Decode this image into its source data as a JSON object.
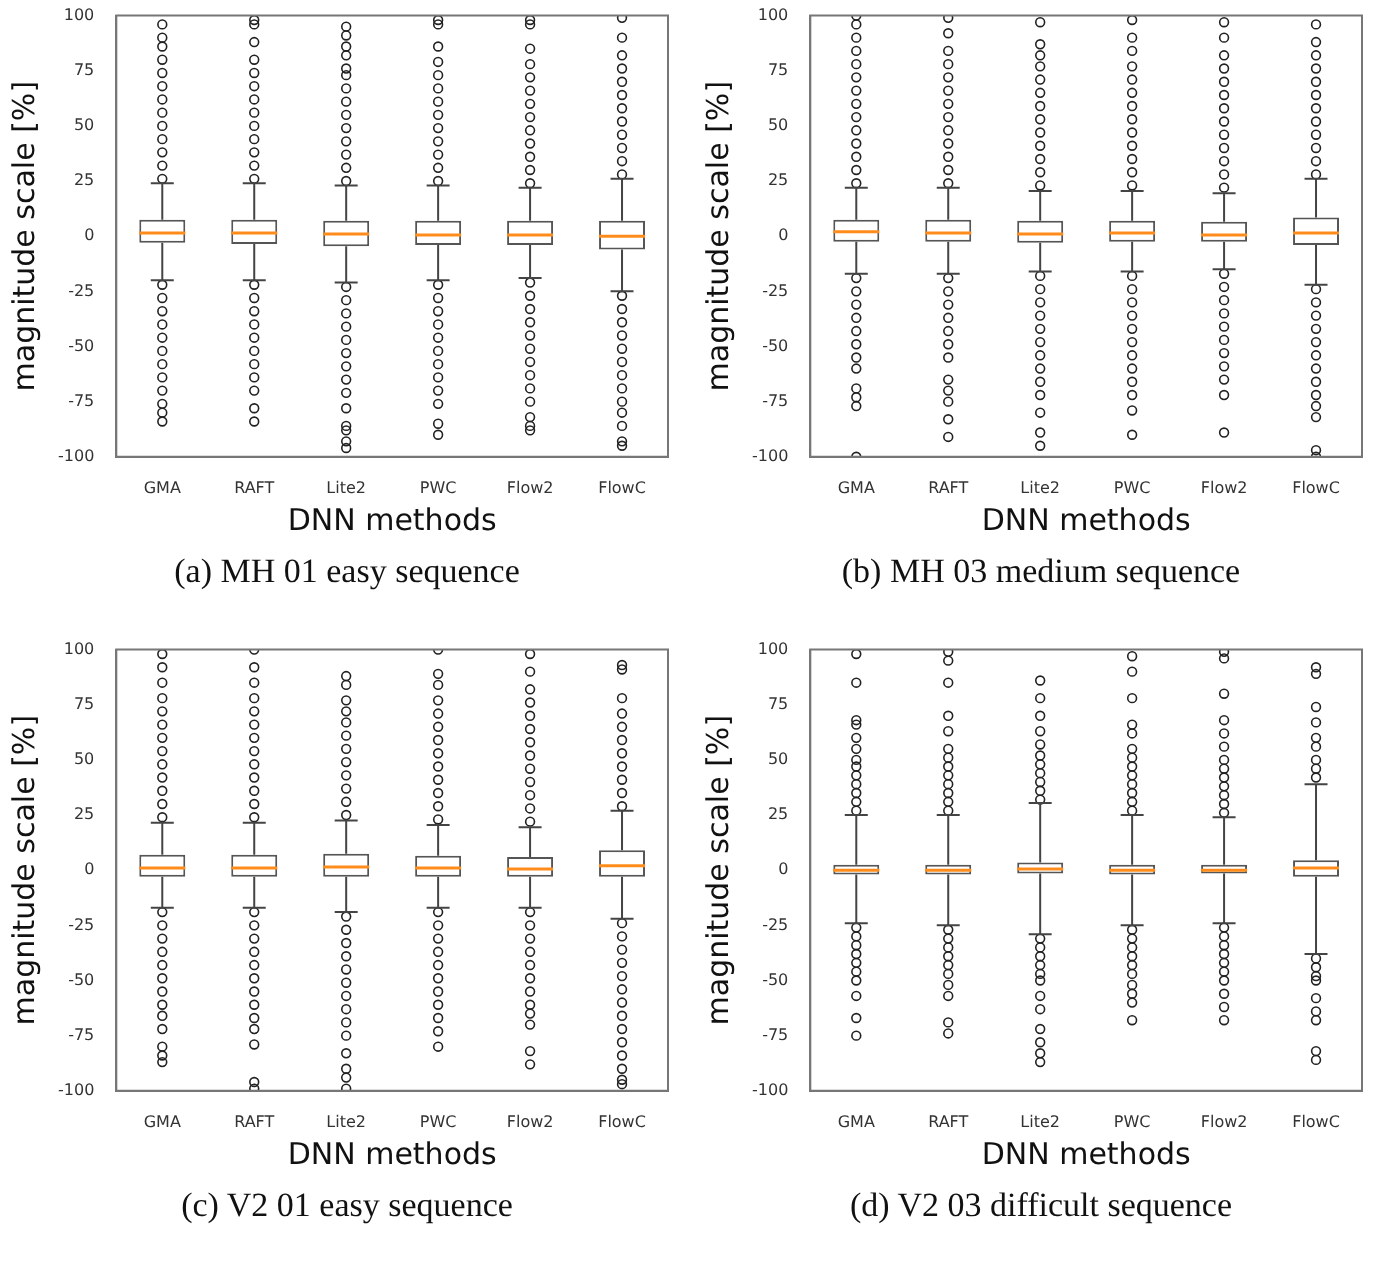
{
  "chart_data": [
    {
      "type": "box",
      "xlabel": "DNN methods",
      "ylabel": "magnitude scale [%]",
      "annotations": [
        "(a) MH 01 easy sequence"
      ],
      "categories": [
        "GMA",
        "RAFT",
        "Lite2",
        "PWC",
        "Flow2",
        "FlowC"
      ],
      "ylim": [
        -100,
        100
      ],
      "yticks": [
        -100,
        -75,
        -50,
        -25,
        0,
        25,
        50,
        75,
        100
      ],
      "boxes": [
        {
          "low": -20,
          "q1": -3,
          "median": 1.5,
          "q3": 7.5,
          "high": 24,
          "outliers": [
            26,
            32,
            38,
            44,
            50,
            56,
            62,
            68,
            74,
            80,
            86,
            90,
            96,
            -22,
            -28,
            -34,
            -40,
            -46,
            -52,
            -58,
            -64,
            -70,
            -76,
            -80,
            -84
          ]
        },
        {
          "low": -20,
          "q1": -3.5,
          "median": 1.5,
          "q3": 7.5,
          "high": 24,
          "outliers": [
            26,
            32,
            38,
            44,
            50,
            56,
            62,
            68,
            74,
            80,
            88,
            96,
            98,
            -22,
            -28,
            -34,
            -40,
            -46,
            -52,
            -58,
            -64,
            -70,
            -78,
            -84
          ]
        },
        {
          "low": -21,
          "q1": -4.5,
          "median": 1,
          "q3": 7,
          "high": 23,
          "outliers": [
            25,
            31,
            37,
            43,
            49,
            55,
            61,
            67,
            73,
            76,
            82,
            86,
            91,
            95,
            -23,
            -29,
            -35,
            -41,
            -47,
            -53,
            -59,
            -65,
            -71,
            -78,
            -86,
            -88,
            -93,
            -96
          ]
        },
        {
          "low": -20,
          "q1": -4,
          "median": 0.5,
          "q3": 7,
          "high": 23,
          "outliers": [
            25,
            31,
            37,
            43,
            49,
            55,
            61,
            67,
            73,
            79,
            86,
            96,
            98,
            -22,
            -28,
            -34,
            -40,
            -46,
            -52,
            -58,
            -64,
            -70,
            -76,
            -85,
            -90
          ]
        },
        {
          "low": -19,
          "q1": -4,
          "median": 0.5,
          "q3": 7,
          "high": 22,
          "outliers": [
            24,
            30,
            36,
            42,
            48,
            54,
            60,
            66,
            72,
            78,
            85,
            96,
            98,
            -21,
            -27,
            -33,
            -39,
            -45,
            -51,
            -57,
            -63,
            -69,
            -75,
            -82,
            -86,
            -88
          ]
        },
        {
          "low": -25,
          "q1": -6,
          "median": 0,
          "q3": 7,
          "high": 26,
          "outliers": [
            28,
            34,
            40,
            46,
            52,
            58,
            64,
            70,
            76,
            82,
            90,
            99,
            -27,
            -33,
            -39,
            -45,
            -51,
            -57,
            -63,
            -69,
            -75,
            -80,
            -86,
            -93,
            -95
          ]
        }
      ]
    },
    {
      "type": "box",
      "xlabel": "DNN methods",
      "ylabel": "magnitude scale [%]",
      "annotations": [
        "(b) MH 03 medium sequence"
      ],
      "categories": [
        "GMA",
        "RAFT",
        "Lite2",
        "PWC",
        "Flow2",
        "FlowC"
      ],
      "ylim": [
        -100,
        100
      ],
      "yticks": [
        -100,
        -75,
        -50,
        -25,
        0,
        25,
        50,
        75,
        100
      ],
      "boxes": [
        {
          "low": -17,
          "q1": -2.5,
          "median": 2,
          "q3": 7.5,
          "high": 22,
          "outliers": [
            24,
            30,
            36,
            42,
            48,
            54,
            60,
            66,
            72,
            78,
            84,
            90,
            96,
            100,
            -19,
            -25,
            -31,
            -37,
            -43,
            -49,
            -55,
            -60,
            -69,
            -73,
            -77,
            -100
          ]
        },
        {
          "low": -17,
          "q1": -2.5,
          "median": 1.5,
          "q3": 7.5,
          "high": 22,
          "outliers": [
            24,
            30,
            36,
            42,
            48,
            54,
            60,
            66,
            72,
            78,
            84,
            92,
            99,
            -19,
            -25,
            -31,
            -37,
            -43,
            -49,
            -55,
            -65,
            -70,
            -75,
            -83,
            -91
          ]
        },
        {
          "low": -16,
          "q1": -3,
          "median": 1,
          "q3": 7,
          "high": 20.5,
          "outliers": [
            23,
            29,
            35,
            41,
            47,
            53,
            59,
            65,
            71,
            77,
            82,
            87,
            97,
            -18,
            -24,
            -30,
            -36,
            -42,
            -48,
            -54,
            -60,
            -66,
            -72,
            -80,
            -89,
            -95
          ]
        },
        {
          "low": -16,
          "q1": -2.5,
          "median": 1.5,
          "q3": 7,
          "high": 20.5,
          "outliers": [
            23,
            29,
            35,
            41,
            47,
            53,
            59,
            65,
            71,
            77,
            84,
            90,
            98,
            -18,
            -24,
            -30,
            -36,
            -42,
            -48,
            -54,
            -60,
            -66,
            -72,
            -79,
            -90
          ]
        },
        {
          "low": -15,
          "q1": -2.5,
          "median": 0.5,
          "q3": 6.5,
          "high": 19.5,
          "outliers": [
            22,
            28,
            34,
            40,
            46,
            52,
            58,
            64,
            70,
            76,
            82,
            90,
            97,
            -17,
            -23,
            -29,
            -35,
            -41,
            -47,
            -53,
            -59,
            -65,
            -72,
            -89
          ]
        },
        {
          "low": -22,
          "q1": -4,
          "median": 1.5,
          "q3": 8.5,
          "high": 26,
          "outliers": [
            28,
            34,
            40,
            46,
            52,
            58,
            64,
            70,
            76,
            82,
            88,
            96,
            -24,
            -30,
            -36,
            -42,
            -48,
            -54,
            -60,
            -66,
            -72,
            -77,
            -82,
            -97,
            -100
          ]
        }
      ]
    },
    {
      "type": "box",
      "xlabel": "DNN methods",
      "ylabel": "magnitude scale [%]",
      "annotations": [
        "(c) V2 01 easy sequence"
      ],
      "categories": [
        "GMA",
        "RAFT",
        "Lite2",
        "PWC",
        "Flow2",
        "FlowC"
      ],
      "ylim": [
        -100,
        100
      ],
      "yticks": [
        -100,
        -75,
        -50,
        -25,
        0,
        25,
        50,
        75,
        100
      ],
      "boxes": [
        {
          "low": -17,
          "q1": -3,
          "median": 1,
          "q3": 7,
          "high": 21.5,
          "outliers": [
            24,
            30,
            36,
            42,
            48,
            54,
            60,
            66,
            72,
            78,
            85,
            92,
            98,
            -19,
            -25,
            -31,
            -37,
            -43,
            -49,
            -55,
            -61,
            -66,
            -72,
            -80,
            -84,
            -87
          ]
        },
        {
          "low": -17,
          "q1": -3,
          "median": 1,
          "q3": 7,
          "high": 21.5,
          "outliers": [
            24,
            30,
            36,
            42,
            48,
            54,
            60,
            66,
            72,
            78,
            85,
            92,
            100,
            -19,
            -25,
            -31,
            -37,
            -43,
            -49,
            -55,
            -61,
            -67,
            -72,
            -79,
            -96,
            -99
          ]
        },
        {
          "low": -19,
          "q1": -3,
          "median": 1.5,
          "q3": 7.5,
          "high": 22.5,
          "outliers": [
            25,
            31,
            37,
            43,
            49,
            55,
            61,
            67,
            72,
            77,
            84,
            88,
            -21,
            -27,
            -33,
            -39,
            -45,
            -51,
            -57,
            -63,
            -69,
            -75,
            -83,
            -90,
            -94,
            -99
          ]
        },
        {
          "low": -17,
          "q1": -3,
          "median": 1,
          "q3": 6.5,
          "high": 20.5,
          "outliers": [
            23,
            29,
            35,
            41,
            47,
            53,
            59,
            65,
            71,
            77,
            84,
            89,
            100,
            -19,
            -25,
            -31,
            -37,
            -43,
            -49,
            -55,
            -61,
            -67,
            -73,
            -80
          ]
        },
        {
          "low": -17,
          "q1": -3,
          "median": 0.5,
          "q3": 6,
          "high": 19.5,
          "outliers": [
            22,
            28,
            34,
            40,
            46,
            52,
            58,
            64,
            70,
            76,
            82,
            90,
            98,
            -19,
            -25,
            -31,
            -37,
            -43,
            -49,
            -55,
            -61,
            -65,
            -70,
            -82,
            -88
          ]
        },
        {
          "low": -22,
          "q1": -3,
          "median": 2,
          "q3": 9,
          "high": 27,
          "outliers": [
            29,
            35,
            41,
            47,
            53,
            59,
            65,
            71,
            78,
            91,
            93,
            -24,
            -30,
            -36,
            -42,
            -48,
            -54,
            -60,
            -66,
            -72,
            -78,
            -84,
            -90,
            -95,
            -97
          ]
        }
      ]
    },
    {
      "type": "box",
      "xlabel": "DNN methods",
      "ylabel": "magnitude scale [%]",
      "annotations": [
        "(d) V2 03 difficult sequence"
      ],
      "categories": [
        "GMA",
        "RAFT",
        "Lite2",
        "PWC",
        "Flow2",
        "FlowC"
      ],
      "ylim": [
        -100,
        100
      ],
      "yticks": [
        -100,
        -75,
        -50,
        -25,
        0,
        25,
        50,
        75,
        100
      ],
      "boxes": [
        {
          "low": -24,
          "q1": -2,
          "median": 0,
          "q3": 2.5,
          "high": 25,
          "outliers": [
            27,
            31,
            35,
            39,
            43,
            47,
            50,
            55,
            60,
            66,
            68,
            85,
            98,
            -26,
            -30,
            -34,
            -38,
            -42,
            -46,
            -50,
            -57,
            -67,
            -75
          ]
        },
        {
          "low": -25,
          "q1": -2,
          "median": 0,
          "q3": 2.5,
          "high": 25,
          "outliers": [
            27,
            31,
            35,
            39,
            43,
            47,
            51,
            55,
            63,
            70,
            85,
            95,
            99,
            -27,
            -31,
            -35,
            -39,
            -43,
            -47,
            -52,
            -57,
            -69,
            -74
          ]
        },
        {
          "low": -29,
          "q1": -1.5,
          "median": 0.5,
          "q3": 3.5,
          "high": 30.5,
          "outliers": [
            32,
            36,
            40,
            44,
            48,
            52,
            57,
            63,
            70,
            78,
            86,
            -31,
            -35,
            -39,
            -43,
            -47,
            -50,
            -57,
            -63,
            -72,
            -78,
            -83,
            -87
          ]
        },
        {
          "low": -25,
          "q1": -2,
          "median": 0,
          "q3": 2.5,
          "high": 25,
          "outliers": [
            27,
            31,
            35,
            39,
            43,
            47,
            51,
            55,
            62,
            66,
            78,
            90,
            97,
            -27,
            -31,
            -35,
            -39,
            -43,
            -47,
            -52,
            -56,
            -60,
            -68
          ]
        },
        {
          "low": -24,
          "q1": -1.5,
          "median": 0,
          "q3": 2.5,
          "high": 24,
          "outliers": [
            26,
            30,
            34,
            38,
            42,
            46,
            50,
            56,
            62,
            68,
            80,
            96,
            99,
            -26,
            -30,
            -34,
            -38,
            -42,
            -46,
            -50,
            -56,
            -62,
            -68
          ]
        },
        {
          "low": -38,
          "q1": -3,
          "median": 1,
          "q3": 4.5,
          "high": 39,
          "outliers": [
            42,
            46,
            50,
            56,
            60,
            67,
            74,
            89,
            92,
            -40,
            -44,
            -48,
            -50,
            -58,
            -64,
            -68,
            -82,
            -86
          ]
        }
      ]
    }
  ]
}
